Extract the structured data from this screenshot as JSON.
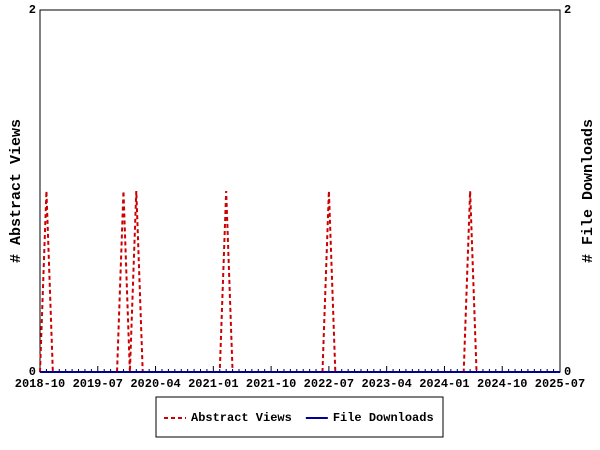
{
  "chart_data": {
    "type": "line",
    "categories": [
      "2018-10",
      null,
      null,
      null,
      null,
      null,
      null,
      null,
      null,
      "2019-07",
      null,
      null,
      null,
      null,
      null,
      null,
      null,
      null,
      "2020-04",
      null,
      null,
      null,
      null,
      null,
      null,
      null,
      null,
      "2021-01",
      null,
      null,
      null,
      null,
      null,
      null,
      null,
      null,
      "2021-10",
      null,
      null,
      null,
      null,
      null,
      null,
      null,
      null,
      "2022-07",
      null,
      null,
      null,
      null,
      null,
      null,
      null,
      null,
      "2023-04",
      null,
      null,
      null,
      null,
      null,
      null,
      null,
      null,
      "2024-01",
      null,
      null,
      null,
      null,
      null,
      null,
      null,
      null,
      "2024-10",
      null,
      null,
      null,
      null,
      null,
      null,
      null,
      null,
      "2025-07"
    ],
    "series": [
      {
        "name": "Abstract Views",
        "color": "#cc0000",
        "line_style": "dashed",
        "values": [
          0,
          1,
          0,
          0,
          0,
          0,
          0,
          0,
          0,
          0,
          0,
          0,
          0,
          1,
          0,
          1,
          0,
          0,
          0,
          0,
          0,
          0,
          0,
          0,
          0,
          0,
          0,
          0,
          0,
          1,
          0,
          0,
          0,
          0,
          0,
          0,
          0,
          0,
          0,
          0,
          0,
          0,
          0,
          0,
          0,
          1,
          0,
          0,
          0,
          0,
          0,
          0,
          0,
          0,
          0,
          0,
          0,
          0,
          0,
          0,
          0,
          0,
          0,
          0,
          0,
          0,
          0,
          1,
          0,
          0,
          0,
          0,
          0,
          0,
          0,
          0,
          0,
          0,
          0,
          0,
          0,
          0
        ]
      },
      {
        "name": "File Downloads",
        "color": "#000099",
        "line_style": "solid",
        "axis": "y2",
        "values": [
          0,
          0,
          0,
          0,
          0,
          0,
          0,
          0,
          0,
          0,
          0,
          0,
          0,
          0,
          0,
          0,
          0,
          0,
          0,
          0,
          0,
          0,
          0,
          0,
          0,
          0,
          0,
          0,
          0,
          0,
          0,
          0,
          0,
          0,
          0,
          0,
          0,
          0,
          0,
          0,
          0,
          0,
          0,
          0,
          0,
          0,
          0,
          0,
          0,
          0,
          0,
          0,
          0,
          0,
          0,
          0,
          0,
          0,
          0,
          0,
          0,
          0,
          0,
          0,
          0,
          0,
          0,
          0,
          0,
          0,
          0,
          0,
          0,
          0,
          0,
          0,
          0,
          0,
          0,
          0,
          0,
          0
        ]
      }
    ],
    "ylabel": "# Abstract Views",
    "y2label": "# File Downloads",
    "ylim": [
      0,
      2
    ],
    "yticks": [
      0,
      2
    ],
    "y2lim": [
      0,
      2
    ],
    "y2ticks": [
      0,
      2
    ],
    "grid": false,
    "legend": "bottom"
  }
}
